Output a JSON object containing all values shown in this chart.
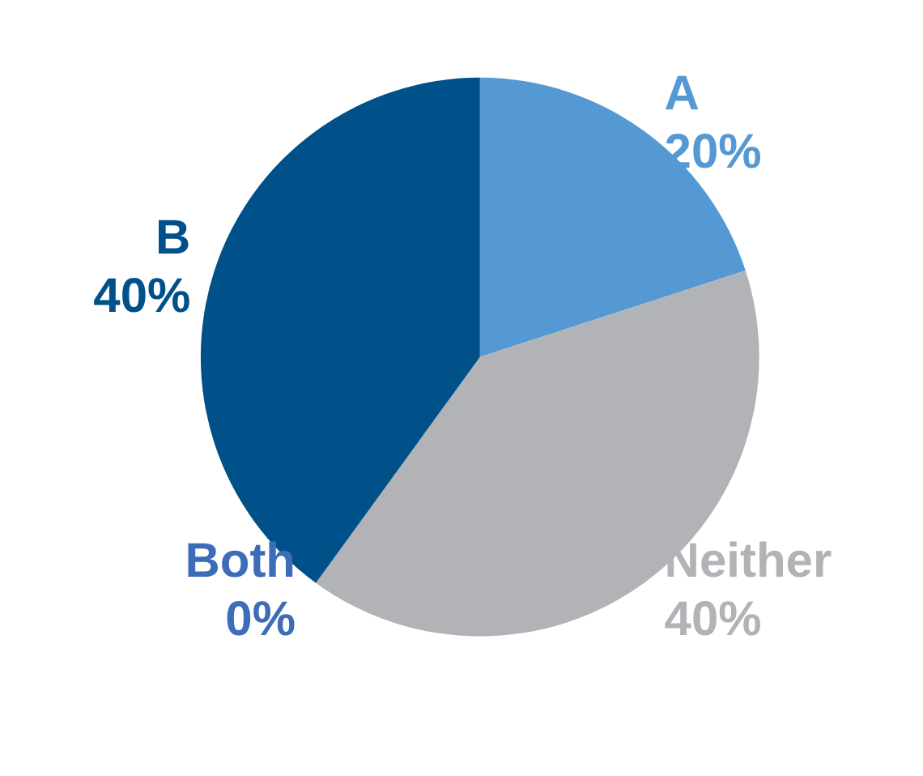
{
  "chart_data": {
    "type": "pie",
    "categories": [
      "A",
      "Neither",
      "Both",
      "B"
    ],
    "values": [
      20,
      40,
      0,
      40
    ],
    "colors": [
      "#5499d3",
      "#b1b3b6",
      "#3d6cb9",
      "#00508a"
    ],
    "value_labels": [
      "20%",
      "40%",
      "0%",
      "40%"
    ],
    "legend": false
  }
}
